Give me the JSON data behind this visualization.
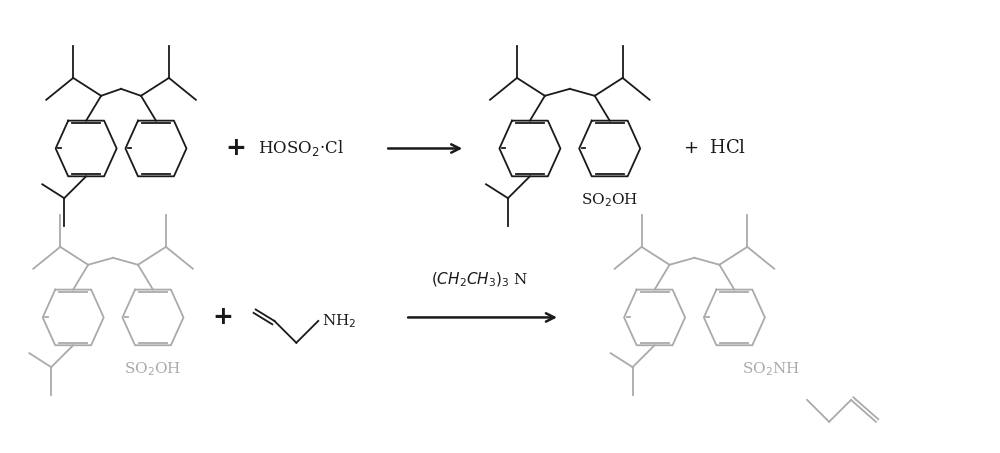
{
  "background_color": "#ffffff",
  "fig_width": 10.0,
  "fig_height": 4.53,
  "dpi": 100,
  "colors": {
    "black": "#1a1a1a",
    "gray": "#aaaaaa"
  },
  "lw_main": 1.3,
  "lw_thin": 1.1
}
